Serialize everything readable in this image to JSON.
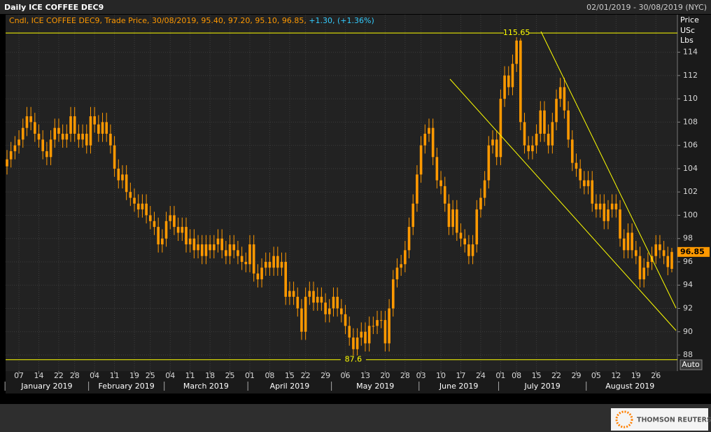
{
  "chart_data": {
    "type": "candlestick",
    "title": "Daily ICE COFFEE DEC9",
    "date_range": "02/01/2019 - 30/08/2019 (NYC)",
    "legend_label": "Cndl, ICE COFFEE DEC9, Trade Price, 30/08/2019, 95.40, 97.20, 95.10, 96.85,",
    "legend_change": "+1.30, (+1.36%)",
    "y_axis_label": [
      "Price",
      "USc",
      "Lbs"
    ],
    "auto_button": "Auto",
    "logo_text": "THOMSON REUTERS",
    "color": "#ff9900",
    "ylim": [
      86.8,
      116.2
    ],
    "yticks": [
      88,
      90,
      92,
      94,
      96,
      98,
      100,
      102,
      104,
      106,
      108,
      110,
      112,
      114
    ],
    "grid": true,
    "hlines": [
      {
        "value": 115.65,
        "color": "#ffff00"
      },
      {
        "value": 87.6,
        "color": "#ffff00"
      }
    ],
    "categories": [
      "2019-01-02",
      "2019-01-03",
      "2019-01-04",
      "2019-01-07",
      "2019-01-08",
      "2019-01-09",
      "2019-01-10",
      "2019-01-11",
      "2019-01-14",
      "2019-01-15",
      "2019-01-16",
      "2019-01-17",
      "2019-01-18",
      "2019-01-22",
      "2019-01-23",
      "2019-01-24",
      "2019-01-25",
      "2019-01-28",
      "2019-01-29",
      "2019-01-30",
      "2019-01-31",
      "2019-02-01",
      "2019-02-04",
      "2019-02-05",
      "2019-02-06",
      "2019-02-07",
      "2019-02-08",
      "2019-02-11",
      "2019-02-12",
      "2019-02-13",
      "2019-02-14",
      "2019-02-15",
      "2019-02-19",
      "2019-02-20",
      "2019-02-21",
      "2019-02-22",
      "2019-02-25",
      "2019-02-26",
      "2019-02-27",
      "2019-02-28",
      "2019-03-01",
      "2019-03-04",
      "2019-03-05",
      "2019-03-06",
      "2019-03-07",
      "2019-03-08",
      "2019-03-11",
      "2019-03-12",
      "2019-03-13",
      "2019-03-14",
      "2019-03-15",
      "2019-03-18",
      "2019-03-19",
      "2019-03-20",
      "2019-03-21",
      "2019-03-22",
      "2019-03-25",
      "2019-03-26",
      "2019-03-27",
      "2019-03-28",
      "2019-03-29",
      "2019-04-01",
      "2019-04-02",
      "2019-04-03",
      "2019-04-04",
      "2019-04-05",
      "2019-04-08",
      "2019-04-09",
      "2019-04-10",
      "2019-04-11",
      "2019-04-12",
      "2019-04-15",
      "2019-04-16",
      "2019-04-17",
      "2019-04-18",
      "2019-04-22",
      "2019-04-23",
      "2019-04-24",
      "2019-04-25",
      "2019-04-26",
      "2019-04-29",
      "2019-04-30",
      "2019-05-01",
      "2019-05-02",
      "2019-05-03",
      "2019-05-06",
      "2019-05-07",
      "2019-05-08",
      "2019-05-09",
      "2019-05-10",
      "2019-05-13",
      "2019-05-14",
      "2019-05-15",
      "2019-05-16",
      "2019-05-17",
      "2019-05-20",
      "2019-05-21",
      "2019-05-22",
      "2019-05-23",
      "2019-05-24",
      "2019-05-28",
      "2019-05-29",
      "2019-05-30",
      "2019-05-31",
      "2019-06-03",
      "2019-06-04",
      "2019-06-05",
      "2019-06-06",
      "2019-06-07",
      "2019-06-10",
      "2019-06-11",
      "2019-06-12",
      "2019-06-13",
      "2019-06-14",
      "2019-06-17",
      "2019-06-18",
      "2019-06-19",
      "2019-06-20",
      "2019-06-21",
      "2019-06-24",
      "2019-06-25",
      "2019-06-26",
      "2019-06-27",
      "2019-06-28",
      "2019-07-01",
      "2019-07-02",
      "2019-07-03",
      "2019-07-05",
      "2019-07-08",
      "2019-07-09",
      "2019-07-10",
      "2019-07-11",
      "2019-07-12",
      "2019-07-15",
      "2019-07-16",
      "2019-07-17",
      "2019-07-18",
      "2019-07-19",
      "2019-07-22",
      "2019-07-23",
      "2019-07-24",
      "2019-07-25",
      "2019-07-26",
      "2019-07-29",
      "2019-07-30",
      "2019-07-31",
      "2019-08-01",
      "2019-08-02",
      "2019-08-05",
      "2019-08-06",
      "2019-08-07",
      "2019-08-08",
      "2019-08-09",
      "2019-08-12",
      "2019-08-13",
      "2019-08-14",
      "2019-08-15",
      "2019-08-16",
      "2019-08-19",
      "2019-08-20",
      "2019-08-21",
      "2019-08-22",
      "2019-08-23",
      "2019-08-26",
      "2019-08-27",
      "2019-08-28",
      "2019-08-29",
      "2019-08-30"
    ],
    "open": [
      104.2,
      104.8,
      105.5,
      106,
      106.5,
      107.5,
      108.5,
      108,
      107,
      106.5,
      105.5,
      105,
      106.5,
      107.5,
      107,
      106.5,
      107,
      108.5,
      107,
      106.5,
      107,
      106,
      108.5,
      107.8,
      107,
      108,
      107,
      106,
      104,
      103,
      103.5,
      102,
      101.5,
      101,
      100.5,
      101,
      100,
      99.5,
      99,
      97.5,
      98,
      99.5,
      100,
      99,
      98.5,
      99,
      97.5,
      98,
      97,
      97.5,
      96.5,
      97.5,
      97,
      97.5,
      98,
      97,
      96.5,
      97.5,
      97,
      96.5,
      96,
      95.8,
      97.5,
      95,
      94.5,
      95.5,
      96,
      95.5,
      96.5,
      95.5,
      96,
      93,
      93.5,
      93,
      92,
      90,
      93,
      93.5,
      92.5,
      93,
      92.5,
      91.5,
      92,
      93,
      92,
      91.5,
      90.5,
      89.5,
      88.5,
      89.5,
      90,
      89,
      90.5,
      90.5,
      91,
      91,
      89,
      92,
      94.5,
      95.5,
      95.8,
      97,
      99,
      101,
      103.5,
      106,
      107,
      107.5,
      105,
      103,
      102.5,
      101,
      99,
      100.5,
      98.5,
      98,
      97.5,
      96.5,
      97.5,
      100.5,
      101.5,
      103,
      106,
      106.5,
      105,
      110,
      112,
      111,
      113,
      115,
      108,
      106,
      105.5,
      106,
      107,
      109,
      107,
      106,
      108,
      110,
      111,
      109,
      106.5,
      104.5,
      104,
      103,
      102.5,
      103,
      101,
      100.5,
      101,
      99.5,
      100.5,
      101,
      100.5,
      98,
      97,
      98.5,
      97,
      96.5,
      94.5,
      95.5,
      96,
      96.5,
      97.5,
      97,
      96.5,
      95.4
    ],
    "high": [
      105.6,
      106.3,
      106.8,
      107.3,
      108.3,
      109.3,
      109.3,
      108.8,
      107.8,
      107.3,
      106.3,
      107.3,
      108.3,
      108.3,
      107.8,
      107.8,
      109.3,
      109.3,
      107.8,
      107.8,
      107.8,
      109.3,
      109.3,
      108.6,
      108.8,
      108.8,
      107.8,
      106.8,
      104.8,
      104.3,
      104.3,
      102.8,
      102.3,
      101.8,
      101.8,
      101.8,
      100.8,
      100.3,
      99.8,
      98.8,
      100.3,
      100.8,
      100.8,
      99.8,
      99.8,
      99.8,
      98.8,
      98.8,
      98.3,
      98.3,
      98.3,
      98.3,
      98.3,
      98.8,
      98.8,
      97.8,
      98.3,
      98.3,
      97.8,
      97.3,
      96.8,
      98.3,
      98.3,
      95.8,
      96.3,
      96.8,
      96.8,
      97.3,
      97.3,
      96.8,
      96.8,
      94.3,
      94.3,
      93.8,
      92.8,
      93.8,
      94.3,
      94.3,
      93.8,
      93.8,
      93.3,
      92.8,
      93.8,
      93.8,
      92.8,
      92.3,
      91.3,
      90.3,
      90.3,
      90.8,
      90.8,
      91.3,
      91.3,
      91.8,
      91.8,
      91.8,
      92.8,
      95.3,
      96.3,
      96.6,
      97.8,
      99.8,
      101.8,
      104.3,
      106.8,
      107.8,
      108.3,
      108.3,
      105.8,
      103.8,
      103.3,
      101.8,
      101.3,
      101.3,
      99.3,
      98.8,
      98.3,
      98.3,
      101.3,
      102.3,
      103.8,
      106.8,
      107.3,
      107.3,
      110.8,
      112.8,
      112.8,
      113.8,
      115.65,
      115.2,
      108.8,
      106.8,
      106.8,
      107.8,
      109.8,
      109.8,
      107.8,
      108.8,
      110.8,
      111.8,
      111.8,
      109.8,
      107.3,
      105.3,
      104.8,
      103.8,
      103.8,
      103.8,
      101.8,
      101.8,
      101.8,
      101.3,
      101.8,
      101.8,
      101.3,
      98.8,
      99.3,
      99.3,
      97.8,
      97.3,
      96.3,
      96.8,
      97.3,
      98.3,
      98.3,
      97.8,
      97.3,
      97.2
    ],
    "low": [
      103.5,
      104.1,
      104.8,
      105.3,
      105.8,
      106.8,
      107.3,
      106.3,
      105.8,
      104.8,
      104.3,
      104.3,
      105.8,
      106.3,
      105.8,
      105.8,
      106.3,
      106.3,
      105.8,
      105.8,
      105.3,
      105.3,
      107.1,
      106.3,
      106.3,
      106.3,
      105.3,
      103.3,
      102.3,
      102.3,
      101.3,
      100.8,
      100.3,
      99.8,
      99.8,
      99.3,
      98.8,
      98.3,
      96.8,
      96.8,
      97.3,
      98.8,
      98.3,
      97.8,
      97.8,
      96.8,
      96.8,
      96.3,
      96.3,
      95.8,
      95.8,
      96.3,
      96.3,
      96.8,
      96.3,
      95.8,
      95.8,
      96.3,
      95.8,
      95.3,
      95.1,
      95.1,
      94.3,
      93.8,
      93.8,
      94.8,
      94.8,
      94.8,
      94.8,
      94.8,
      92.3,
      92.3,
      92.3,
      91.3,
      89.3,
      89.3,
      92.3,
      91.8,
      91.8,
      91.8,
      90.8,
      90.8,
      91.3,
      91.3,
      90.8,
      89.8,
      88.8,
      87.6,
      87.8,
      88.8,
      88.3,
      88.3,
      89.8,
      89.8,
      90.3,
      88.3,
      88.3,
      91.3,
      93.8,
      94.8,
      95.1,
      96.3,
      98.3,
      100.3,
      102.8,
      105.3,
      106.3,
      104.3,
      102.3,
      101.8,
      100.3,
      98.3,
      98.3,
      97.8,
      97.3,
      96.8,
      95.8,
      95.8,
      96.8,
      99.8,
      100.8,
      102.3,
      105.3,
      104.3,
      104.3,
      109.3,
      110.3,
      110.3,
      112.3,
      107.3,
      105.3,
      104.8,
      104.8,
      105.3,
      106.3,
      106.3,
      105.3,
      105.3,
      107.3,
      109.3,
      108.3,
      105.8,
      103.8,
      103.3,
      102.3,
      101.8,
      101.8,
      100.3,
      99.8,
      99.8,
      98.8,
      98.8,
      99.8,
      99.8,
      97.3,
      96.3,
      96.3,
      96.3,
      95.8,
      93.8,
      93.8,
      94.8,
      95.3,
      95.8,
      96.3,
      95.8,
      94.85,
      95.1
    ],
    "close": [
      104.8,
      105.5,
      106,
      106.5,
      107.5,
      108.5,
      108,
      107,
      106.5,
      105.5,
      105,
      106.5,
      107.5,
      107,
      106.5,
      107,
      108.5,
      107,
      106.5,
      107,
      106,
      108.5,
      107.8,
      107,
      108,
      107,
      106,
      104,
      103,
      103.5,
      102,
      101.5,
      101,
      100.5,
      101,
      100,
      99.5,
      99,
      97.5,
      98,
      99.5,
      100,
      99,
      98.5,
      99,
      97.5,
      98,
      97,
      97.5,
      96.5,
      97.5,
      97,
      97.5,
      98,
      97,
      96.5,
      97.5,
      97,
      96.5,
      96,
      95.8,
      97.5,
      95,
      94.5,
      95.5,
      96,
      95.5,
      96.5,
      95.5,
      96,
      93,
      93.5,
      93,
      92,
      90,
      93,
      93.5,
      92.5,
      93,
      92.5,
      91.5,
      92,
      93,
      92,
      91.5,
      90.5,
      89.5,
      88.5,
      89.5,
      90,
      89,
      90.5,
      90.5,
      91,
      91,
      89,
      92,
      94.5,
      95.5,
      95.8,
      97,
      99,
      101,
      103.5,
      106,
      107,
      107.5,
      105,
      103,
      102.5,
      101,
      99,
      100.5,
      98.5,
      98,
      97.5,
      96.5,
      97.5,
      100.5,
      101.5,
      103,
      106,
      106.5,
      105,
      110,
      112,
      111,
      113,
      115,
      108,
      106,
      105.5,
      106,
      107,
      109,
      107,
      106,
      108,
      110,
      111,
      109,
      106.5,
      104.5,
      104,
      103,
      102.5,
      103,
      101,
      100.5,
      101,
      99.5,
      100.5,
      101,
      100.5,
      98,
      97,
      98.5,
      97,
      96.5,
      94.5,
      95.5,
      96,
      96.5,
      97.5,
      97,
      96.5,
      95.55,
      96.85
    ],
    "xticks": [
      {
        "value": "2019-01-07",
        "label": "07"
      },
      {
        "value": "2019-01-14",
        "label": "14"
      },
      {
        "value": "2019-01-22",
        "label": "22"
      },
      {
        "value": "2019-01-28",
        "label": "28"
      },
      {
        "value": "2019-02-04",
        "label": "04"
      },
      {
        "value": "2019-02-11",
        "label": "11"
      },
      {
        "value": "2019-02-19",
        "label": "19"
      },
      {
        "value": "2019-02-25",
        "label": "25"
      },
      {
        "value": "2019-03-04",
        "label": "04"
      },
      {
        "value": "2019-03-11",
        "label": "11"
      },
      {
        "value": "2019-03-18",
        "label": "18"
      },
      {
        "value": "2019-03-25",
        "label": "25"
      },
      {
        "value": "2019-04-01",
        "label": "01"
      },
      {
        "value": "2019-04-08",
        "label": "08"
      },
      {
        "value": "2019-04-15",
        "label": "15"
      },
      {
        "value": "2019-04-22",
        "label": "22"
      },
      {
        "value": "2019-04-29",
        "label": "29"
      },
      {
        "value": "2019-05-06",
        "label": "06"
      },
      {
        "value": "2019-05-13",
        "label": "13"
      },
      {
        "value": "2019-05-20",
        "label": "20"
      },
      {
        "value": "2019-05-28",
        "label": "28"
      },
      {
        "value": "2019-06-03",
        "label": "03"
      },
      {
        "value": "2019-06-10",
        "label": "10"
      },
      {
        "value": "2019-06-17",
        "label": "17"
      },
      {
        "value": "2019-06-24",
        "label": "24"
      },
      {
        "value": "2019-07-01",
        "label": "01"
      },
      {
        "value": "2019-07-08",
        "label": "08"
      },
      {
        "value": "2019-07-15",
        "label": "15"
      },
      {
        "value": "2019-07-22",
        "label": "22"
      },
      {
        "value": "2019-07-29",
        "label": "29"
      },
      {
        "value": "2019-08-05",
        "label": "05"
      },
      {
        "value": "2019-08-12",
        "label": "12"
      },
      {
        "value": "2019-08-19",
        "label": "19"
      },
      {
        "value": "2019-08-26",
        "label": "26"
      }
    ],
    "month_labels": [
      "January 2019",
      "February 2019",
      "March 2019",
      "April 2019",
      "May 2019",
      "June 2019",
      "July 2019",
      "August 2019"
    ]
  }
}
